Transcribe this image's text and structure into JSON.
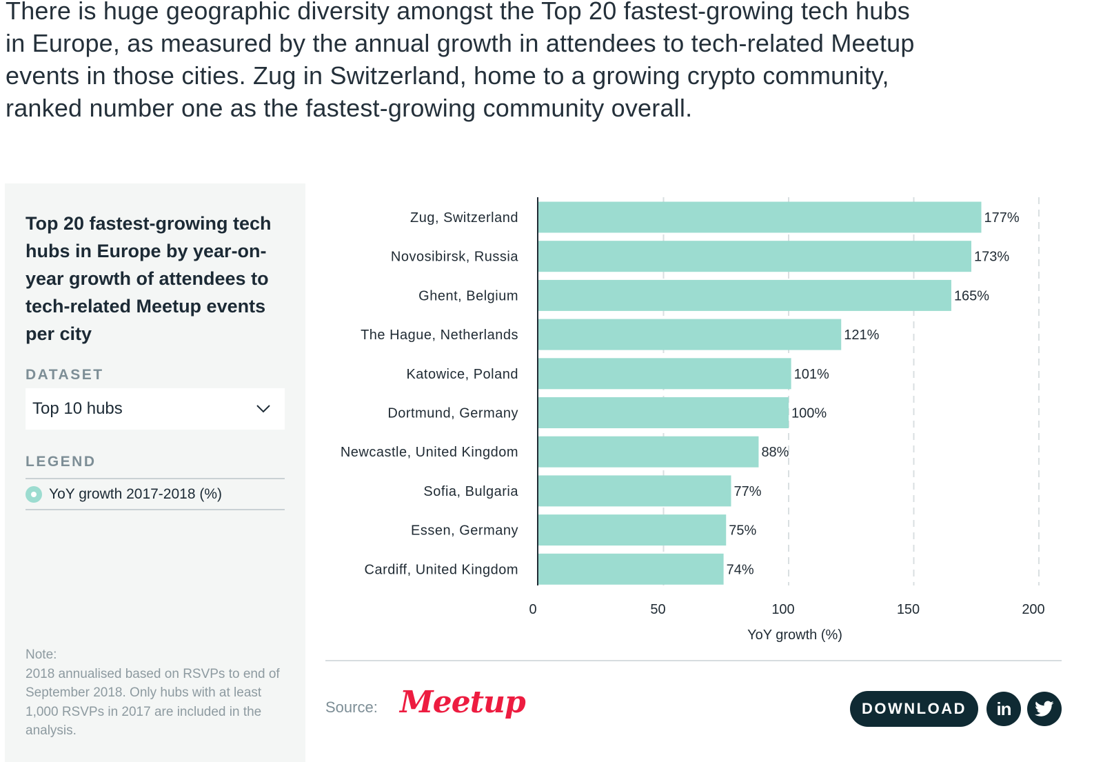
{
  "intro": {
    "text": "There is huge geographic diversity amongst the Top 20 fastest-growing tech hubs in Europe, as measured by the annual growth in attendees to tech-related Meetup events in those cities. Zug in Switzerland, home to a growing crypto community, ranked number one as the fastest-growing community overall."
  },
  "sidebar": {
    "title": "Top 20 fastest-growing tech hubs in Europe by year-on-year growth of attendees to tech-related Meetup events per city",
    "dataset_label": "DATASET",
    "dataset_value": "Top 10 hubs",
    "legend_label": "LEGEND",
    "legend_item": "YoY growth 2017-2018 (%)",
    "note": "Note:\n2018 annualised based on RSVPs to end of September 2018. Only hubs with at least 1,000 RSVPs in 2017 are included in the analysis."
  },
  "chart_data": {
    "type": "bar",
    "orientation": "horizontal",
    "categories": [
      "Zug, Switzerland",
      "Novosibirsk, Russia",
      "Ghent, Belgium",
      "The Hague, Netherlands",
      "Katowice, Poland",
      "Dortmund, Germany",
      "Newcastle, United Kingdom",
      "Sofia, Bulgaria",
      "Essen, Germany",
      "Cardiff, United Kingdom"
    ],
    "values": [
      177,
      173,
      165,
      121,
      101,
      100,
      88,
      77,
      75,
      74
    ],
    "value_labels": [
      "177%",
      "173%",
      "165%",
      "121%",
      "101%",
      "100%",
      "88%",
      "77%",
      "75%",
      "74%"
    ],
    "xlabel": "YoY growth (%)",
    "xlim": [
      0,
      200
    ],
    "xticks": [
      0,
      50,
      100,
      150,
      200
    ],
    "grid": "vertical dashed",
    "series_name": "YoY growth 2017-2018 (%)",
    "bar_color": "#9cdcd0"
  },
  "footer": {
    "source_label": "Source:",
    "source_logo": "Meetup",
    "download_label": "DOWNLOAD",
    "linkedin_icon": "linkedin-icon",
    "twitter_icon": "twitter-icon"
  },
  "colors": {
    "bar": "#9cdcd0",
    "dark": "#0f2a33",
    "brand": "#ed1c40"
  }
}
